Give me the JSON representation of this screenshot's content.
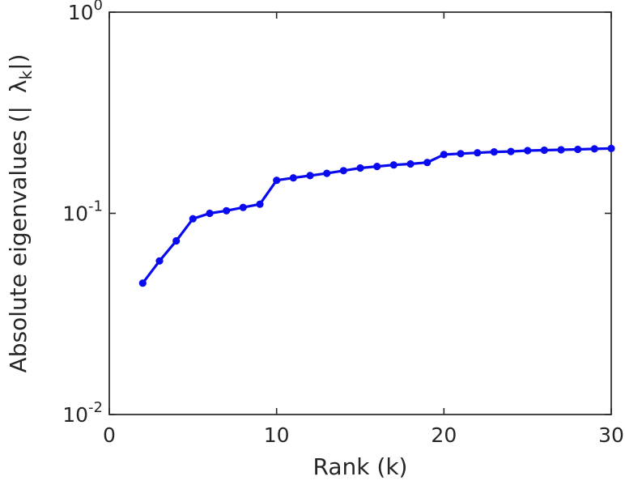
{
  "figure": {
    "background": "#ffffff",
    "axes_color": "#262626",
    "line_color": "#0a0aee",
    "marker_color": "#0a0aee"
  },
  "chart_data": {
    "type": "line",
    "title": "",
    "xlabel": "Rank (k)",
    "ylabel": {
      "prefix": "Absolute eigenvalues (|",
      "symbol": "λ",
      "subscript": "k",
      "suffix": "|)"
    },
    "yscale": "log",
    "xlim": [
      0,
      30
    ],
    "ylim": [
      0.01,
      1
    ],
    "grid": false,
    "legend": null,
    "marker": "circle",
    "xticks": [
      0,
      10,
      20,
      30
    ],
    "yticks": [
      {
        "base": "10",
        "exp": "0",
        "value": 1
      },
      {
        "base": "10",
        "exp": "-1",
        "value": 0.1
      },
      {
        "base": "10",
        "exp": "-2",
        "value": 0.01
      }
    ],
    "x": [
      2,
      3,
      4,
      5,
      6,
      7,
      8,
      9,
      10,
      11,
      12,
      13,
      14,
      15,
      16,
      17,
      18,
      19,
      20,
      21,
      22,
      23,
      24,
      25,
      26,
      27,
      28,
      29,
      30
    ],
    "y": [
      0.045,
      0.058,
      0.073,
      0.094,
      0.1,
      0.103,
      0.107,
      0.111,
      0.146,
      0.15,
      0.154,
      0.158,
      0.163,
      0.168,
      0.171,
      0.174,
      0.176,
      0.179,
      0.196,
      0.198,
      0.2,
      0.202,
      0.203,
      0.205,
      0.206,
      0.207,
      0.208,
      0.209,
      0.21
    ]
  }
}
